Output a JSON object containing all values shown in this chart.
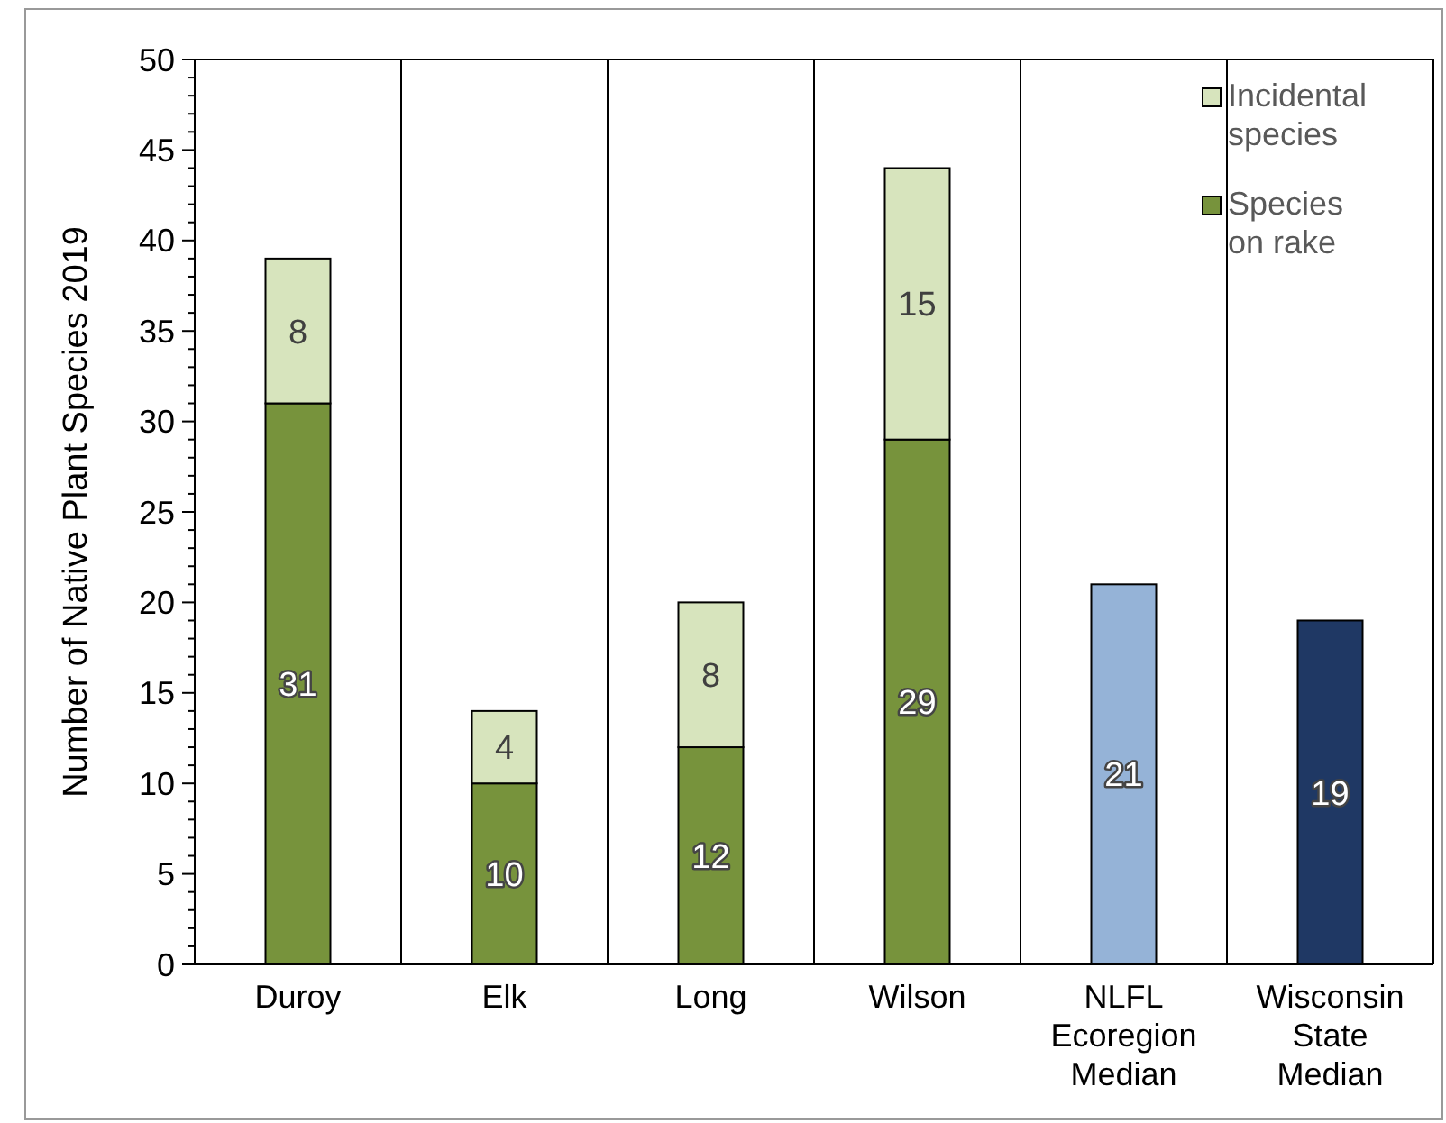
{
  "chart_data": {
    "type": "bar",
    "stacked": true,
    "ylabel": "Number of Native Plant Species 2019",
    "categories": [
      "Duroy",
      "Elk",
      "Long",
      "Wilson",
      "NLFL Ecoregion Median",
      "Wisconsin State Median"
    ],
    "series": [
      {
        "name": "Species on rake",
        "color": "#77933c",
        "colors": [
          "#77933c",
          "#77933c",
          "#77933c",
          "#77933c",
          "#95b3d7",
          "#1f3864"
        ],
        "values": [
          31,
          10,
          12,
          29,
          21,
          19
        ]
      },
      {
        "name": "Incidental species",
        "color": "#d7e4bd",
        "values": [
          8,
          4,
          8,
          15,
          null,
          null
        ]
      }
    ],
    "ylim": [
      0,
      50
    ],
    "yticks": [
      0,
      {
        "value": 1,
        "label": null
      },
      {
        "value": 2,
        "label": null
      },
      {
        "value": 3,
        "label": null
      },
      {
        "value": 4,
        "label": null
      },
      5,
      {
        "value": 6,
        "label": null
      },
      {
        "value": 7,
        "label": null
      },
      {
        "value": 8,
        "label": null
      },
      {
        "value": 9,
        "label": null
      },
      10,
      {
        "value": 11,
        "label": null
      },
      {
        "value": 12,
        "label": null
      },
      {
        "value": 13,
        "label": null
      },
      {
        "value": 14,
        "label": null
      },
      15,
      {
        "value": 16,
        "label": null
      },
      {
        "value": 17,
        "label": null
      },
      {
        "value": 18,
        "label": null
      },
      {
        "value": 19,
        "label": null
      },
      20,
      {
        "value": 21,
        "label": null
      },
      {
        "value": 22,
        "label": null
      },
      {
        "value": 23,
        "label": null
      },
      {
        "value": 24,
        "label": null
      },
      25,
      {
        "value": 26,
        "label": null
      },
      {
        "value": 27,
        "label": null
      },
      {
        "value": 28,
        "label": null
      },
      {
        "value": 29,
        "label": null
      },
      30,
      {
        "value": 31,
        "label": null
      },
      {
        "value": 32,
        "label": null
      },
      {
        "value": 33,
        "label": null
      },
      {
        "value": 34,
        "label": null
      },
      35,
      {
        "value": 36,
        "label": null
      },
      {
        "value": 37,
        "label": null
      },
      {
        "value": 38,
        "label": null
      },
      {
        "value": 39,
        "label": null
      },
      40,
      {
        "value": 41,
        "label": null
      },
      {
        "value": 42,
        "label": null
      },
      {
        "value": 43,
        "label": null
      },
      {
        "value": 44,
        "label": null
      },
      45,
      {
        "value": 46,
        "label": null
      },
      {
        "value": 47,
        "label": null
      },
      {
        "value": 48,
        "label": null
      },
      {
        "value": 49,
        "label": null
      },
      50
    ],
    "grid": "x",
    "legend": "top right",
    "data_labels": true
  }
}
